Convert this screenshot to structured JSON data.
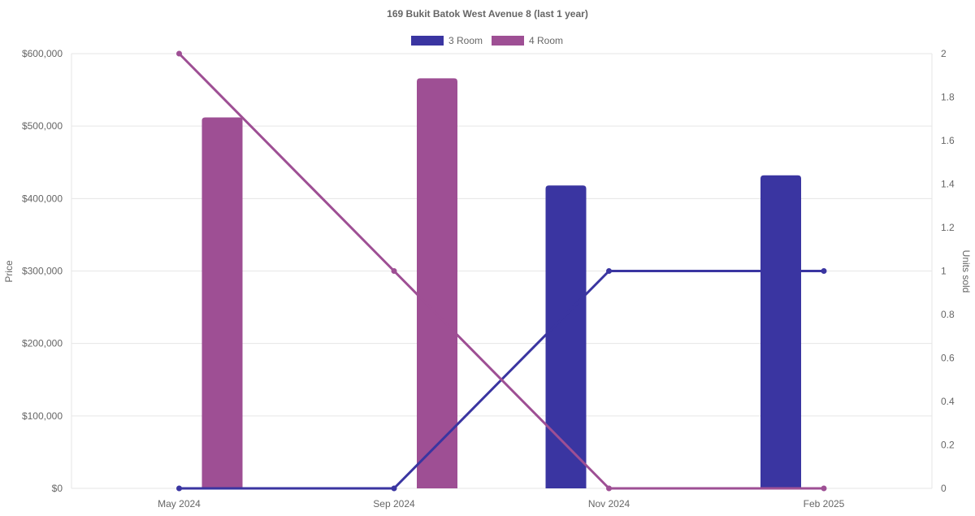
{
  "chart_data": {
    "type": "bar",
    "title": "169 Bukit Batok West Avenue 8 (last 1 year)",
    "categories": [
      "May 2024",
      "Sep 2024",
      "Nov 2024",
      "Feb 2025"
    ],
    "legend": {
      "position": "top",
      "entries": [
        {
          "name": "3 Room",
          "color": "#3a35a1"
        },
        {
          "name": "4 Room",
          "color": "#9e4f94"
        }
      ]
    },
    "y_left": {
      "label": "Price",
      "min": 0,
      "max": 600000,
      "ticks": [
        0,
        100000,
        200000,
        300000,
        400000,
        500000,
        600000
      ],
      "tick_labels": [
        "$0",
        "$100,000",
        "$200,000",
        "$300,000",
        "$400,000",
        "$500,000",
        "$600,000"
      ]
    },
    "y_right": {
      "label": "Units sold",
      "min": 0,
      "max": 2,
      "ticks": [
        0,
        0.2,
        0.4,
        0.6,
        0.8,
        1,
        1.2,
        1.4,
        1.6,
        1.8,
        2
      ],
      "tick_labels": [
        "0",
        "0.2",
        "0.4",
        "0.6",
        "0.8",
        "1",
        "1.2",
        "1.4",
        "1.6",
        "1.8",
        "2"
      ]
    },
    "grid": true,
    "bar_series": [
      {
        "name": "3 Room",
        "color": "#3a35a1",
        "values": [
          null,
          null,
          418000,
          432000
        ]
      },
      {
        "name": "4 Room",
        "color": "#9e4f94",
        "values": [
          512000,
          566000,
          null,
          null
        ]
      }
    ],
    "line_series": [
      {
        "name": "3 Room",
        "color": "#3a35a1",
        "values": [
          0,
          0,
          1,
          1
        ]
      },
      {
        "name": "4 Room",
        "color": "#9e4f94",
        "values": [
          2,
          1,
          0,
          0
        ]
      }
    ]
  }
}
